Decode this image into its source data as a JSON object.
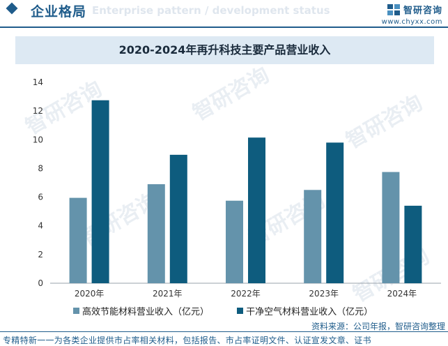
{
  "header": {
    "section_title": "企业格局",
    "section_subtitle": "Enterprise pattern / development status",
    "brand_name": "智研咨询",
    "brand_url": "www.chyxx.com"
  },
  "watermark": "智研咨询",
  "colors": {
    "accent": "#1f5c8b",
    "series1": "#6493ab",
    "series2": "#0e5c7e",
    "title_band": "#dde9f3"
  },
  "chart_data": {
    "type": "bar",
    "title": "2020-2024年再升科技主要产品营业收入",
    "categories": [
      "2020年",
      "2021年",
      "2022年",
      "2023年",
      "2024年"
    ],
    "series": [
      {
        "name": "高效节能材料营业收入（亿元）",
        "values": [
          5.95,
          6.9,
          5.75,
          6.5,
          7.75
        ]
      },
      {
        "name": "干净空气材料营业收入（亿元）",
        "values": [
          12.75,
          8.95,
          10.15,
          9.8,
          5.4
        ]
      }
    ],
    "ylim": [
      0,
      14
    ],
    "yticks": [
      0,
      2,
      4,
      6,
      8,
      10,
      12,
      14
    ],
    "grid": false,
    "legend_position": "bottom"
  },
  "footer": {
    "source": "资料来源：公司年报，智研咨询整理",
    "tagline": "专精特新一一为各类企业提供市占率相关材料，包括报告、市占率证明文件、认证宣发文章、证书"
  }
}
